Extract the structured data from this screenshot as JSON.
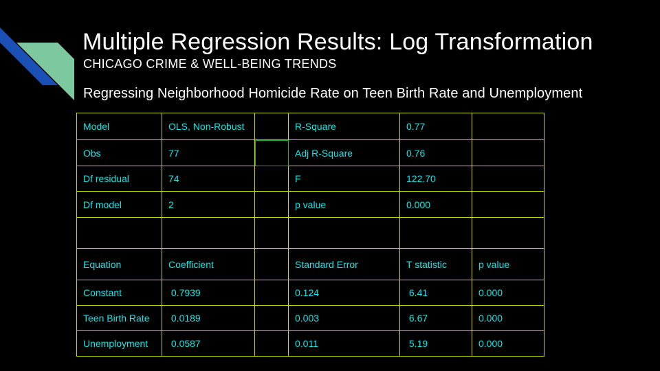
{
  "colors": {
    "background": "#000000",
    "title_text": "#ffffff",
    "cell_text": "#13e6e6",
    "cell_border": "#d4d600",
    "selected_cell_border": "#1fb51f",
    "deco_blue": "#1a4fb5",
    "deco_green": "#7ec8a0"
  },
  "slide": {
    "title": "Multiple Regression Results: Log Transformation",
    "subtitle": "CHICAGO CRIME & WELL-BEING TRENDS",
    "caption": "Regressing Neighborhood Homicide Rate on Teen Birth Rate and Unemployment"
  },
  "table": {
    "rows": [
      [
        "Model",
        "OLS, Non-Robust",
        "",
        "R-Square",
        "0.77",
        ""
      ],
      [
        "Obs",
        "77",
        "",
        "Adj R-Square",
        "0.76",
        ""
      ],
      [
        "Df residual",
        "74",
        "",
        "F",
        "122.70",
        ""
      ],
      [
        "Df model",
        "2",
        "",
        "p value",
        "0.000",
        ""
      ],
      [
        "",
        "",
        "",
        "",
        "",
        ""
      ],
      [
        "Equation",
        "Coefficient",
        "",
        "Standard Error",
        "T statistic",
        "p value"
      ],
      [
        "Constant",
        " 0.7939",
        "",
        "0.124",
        " 6.41",
        "0.000"
      ],
      [
        "Teen Birth Rate",
        " 0.0189",
        "",
        "0.003",
        " 6.67",
        "0.000"
      ],
      [
        "Unemployment",
        " 0.0587",
        "",
        "0.011",
        " 5.19",
        "0.000"
      ]
    ]
  }
}
